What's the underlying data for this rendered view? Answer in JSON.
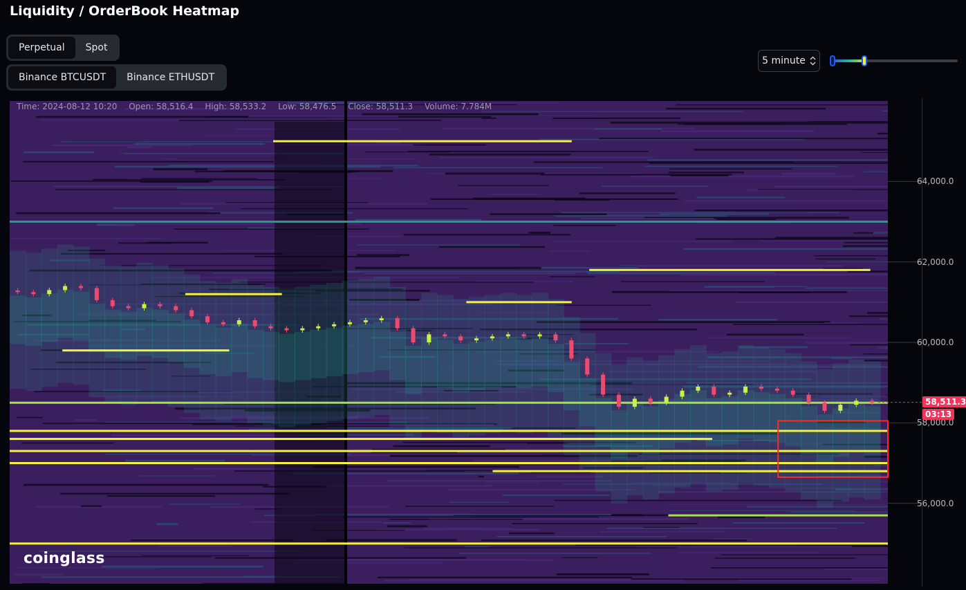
{
  "title": "Liquidity / OrderBook Heatmap",
  "market_tabs": [
    {
      "label": "Perpetual",
      "active": true
    },
    {
      "label": "Spot",
      "active": false
    }
  ],
  "pair_tabs": [
    {
      "label": "Binance BTCUSDT",
      "active": true
    },
    {
      "label": "Binance ETHUSDT",
      "active": false
    }
  ],
  "interval": {
    "label": "5 minute",
    "icon": "chevron-updown-icon"
  },
  "threshold_slider": {
    "low": 0.0,
    "high": 0.27
  },
  "info": {
    "time": "Time: 2024-08-12 10:20",
    "open": "Open: 58,516.4",
    "high": "High: 58,533.2",
    "low": "Low: 58,476.5",
    "close": "Close: 58,511.3",
    "volume": "Volume: 7.784M"
  },
  "price_axis": {
    "ticks": [
      "64,000.0",
      "62,000.0",
      "60,000.0",
      "58,000.0",
      "56,000.0"
    ],
    "current_price": "58,511.3",
    "countdown": "03:13"
  },
  "logo": "coinglass",
  "colors": {
    "up": "#c6f24a",
    "down": "#ee4a6e",
    "heat_low": "#3b1e5e",
    "heat_mid": "#1f9e8a",
    "heat_high": "#f6f23a",
    "highlight_box": "#ff2a1a",
    "price_badge": "#f0345c"
  },
  "chart_data": {
    "type": "heatmap",
    "ylim": [
      54000,
      66000
    ],
    "y_ticks": [
      64000,
      62000,
      60000,
      58000,
      56000
    ],
    "current_price": 58511.3,
    "liquidity_levels": [
      {
        "price": 65000,
        "intensity": 1.0,
        "from": 0.3,
        "to": 0.64
      },
      {
        "price": 63000,
        "intensity": 0.6,
        "from": 0.0,
        "to": 1.0
      },
      {
        "price": 61800,
        "intensity": 0.9,
        "from": 0.66,
        "to": 0.98
      },
      {
        "price": 61200,
        "intensity": 0.9,
        "from": 0.2,
        "to": 0.31
      },
      {
        "price": 61000,
        "intensity": 0.9,
        "from": 0.52,
        "to": 0.64
      },
      {
        "price": 59800,
        "intensity": 1.0,
        "from": 0.06,
        "to": 0.25
      },
      {
        "price": 58500,
        "intensity": 0.8,
        "from": 0.0,
        "to": 1.0
      },
      {
        "price": 57800,
        "intensity": 1.0,
        "from": 0.0,
        "to": 1.0
      },
      {
        "price": 57600,
        "intensity": 0.9,
        "from": 0.0,
        "to": 0.8
      },
      {
        "price": 57300,
        "intensity": 1.0,
        "from": 0.0,
        "to": 1.0
      },
      {
        "price": 57000,
        "intensity": 1.0,
        "from": 0.0,
        "to": 1.0
      },
      {
        "price": 56800,
        "intensity": 0.9,
        "from": 0.55,
        "to": 1.0
      },
      {
        "price": 55700,
        "intensity": 0.8,
        "from": 0.75,
        "to": 1.0
      },
      {
        "price": 55000,
        "intensity": 1.0,
        "from": 0.0,
        "to": 1.0
      }
    ],
    "close_series": [
      61250,
      61200,
      61300,
      61400,
      61350,
      61050,
      60900,
      60850,
      60950,
      60900,
      60800,
      60650,
      60500,
      60450,
      60550,
      60400,
      60350,
      60300,
      60350,
      60400,
      60450,
      60500,
      60550,
      60600,
      60350,
      60000,
      60200,
      60150,
      60050,
      60100,
      60150,
      60200,
      60150,
      60200,
      60050,
      59600,
      59200,
      58700,
      58400,
      58600,
      58500,
      58650,
      58800,
      58900,
      58700,
      58750,
      58900,
      58850,
      58800,
      58700,
      58500,
      58300,
      58450,
      58550,
      58500
    ],
    "highlight_region": {
      "price_from": 56650,
      "price_to": 58050,
      "from": 0.875,
      "to": 1.0
    }
  }
}
